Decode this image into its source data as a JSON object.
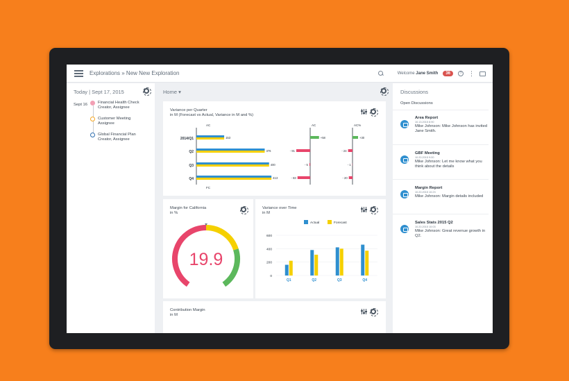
{
  "header": {
    "breadcrumb": "Explorations » New New Exploration",
    "welcome": "Welcome",
    "user": "Jane Smith",
    "notif_count": "36"
  },
  "timeline": {
    "date": "Today | Sept 17, 2015",
    "month": "Sept 16",
    "items": [
      {
        "title": "Financial Health Check",
        "sub": "Creator, Assignee",
        "color": "#f2a0b4"
      },
      {
        "title": "Customer Meeting",
        "sub": "Assignee",
        "color": "#f5a623"
      },
      {
        "title": "Global Financial Plan",
        "sub": "Creator, Assignee",
        "color": "#2f6fb0"
      }
    ]
  },
  "main": {
    "home_label": "Home ▾"
  },
  "variance_card": {
    "title": "Variance per Quarter",
    "subtitle": "in M (Forecast vs Actual, Variance in M and %)",
    "col_labels": [
      "AC",
      "AC",
      "AC%"
    ],
    "fc_label": "FC",
    "rows": [
      {
        "label": "2014/Q1",
        "value": "153",
        "var": "+58",
        "pct": "+30",
        "ac": 153,
        "fc": 153,
        "v": 58,
        "p": 30
      },
      {
        "label": "Q2",
        "value": "376",
        "var": "- 91",
        "pct": "- 24",
        "ac": 376,
        "fc": 376,
        "v": -91,
        "p": -24
      },
      {
        "label": "Q3",
        "value": "400",
        "var": "- 5",
        "pct": "- 1",
        "ac": 400,
        "fc": 400,
        "v": -5,
        "p": -1
      },
      {
        "label": "Q4",
        "value": "413",
        "var": "- 83",
        "pct": "- 20",
        "ac": 413,
        "fc": 413,
        "v": -83,
        "p": -20
      }
    ]
  },
  "margin_card": {
    "title": "Margin for California",
    "subtitle": "in %",
    "value": "19.9",
    "fraction": 0.199
  },
  "over_time_card": {
    "title": "Variance over Time",
    "subtitle": "in M",
    "chart_data": {
      "type": "bar",
      "categories": [
        "Q1",
        "Q2",
        "Q3",
        "Q4"
      ],
      "series": [
        {
          "name": "Actual",
          "values": [
            160,
            380,
            420,
            460
          ],
          "color": "#2f8fcf"
        },
        {
          "name": "Forecast",
          "values": [
            220,
            310,
            400,
            370
          ],
          "color": "#f5d000"
        }
      ],
      "yticks": [
        "0",
        "200",
        "400",
        "600"
      ],
      "ylim": [
        0,
        600
      ]
    }
  },
  "contribution_card": {
    "title": "Contribution Margin",
    "subtitle": "in M"
  },
  "discussions": {
    "title": "Discussions",
    "subtitle": "Open Discussions",
    "items": [
      {
        "name": "Area Report",
        "time": "10.13.2015 8:90",
        "msg": "Mike Johnson: Mike Johnson has invited Jane Smith."
      },
      {
        "name": "GBF Meeting",
        "time": "10.20.2015 9:00",
        "msg": "Mike Johnson: Let me know what you think about the details"
      },
      {
        "name": "Margin Report",
        "time": "10.20.2015 10:23",
        "msg": "Mike Johnson: Margin details included"
      },
      {
        "name": "Sales Stats 2015 Q2",
        "time": "10.20.2015 10:03",
        "msg": "Mike Johnson: Great revenue growth in Q2."
      }
    ]
  }
}
